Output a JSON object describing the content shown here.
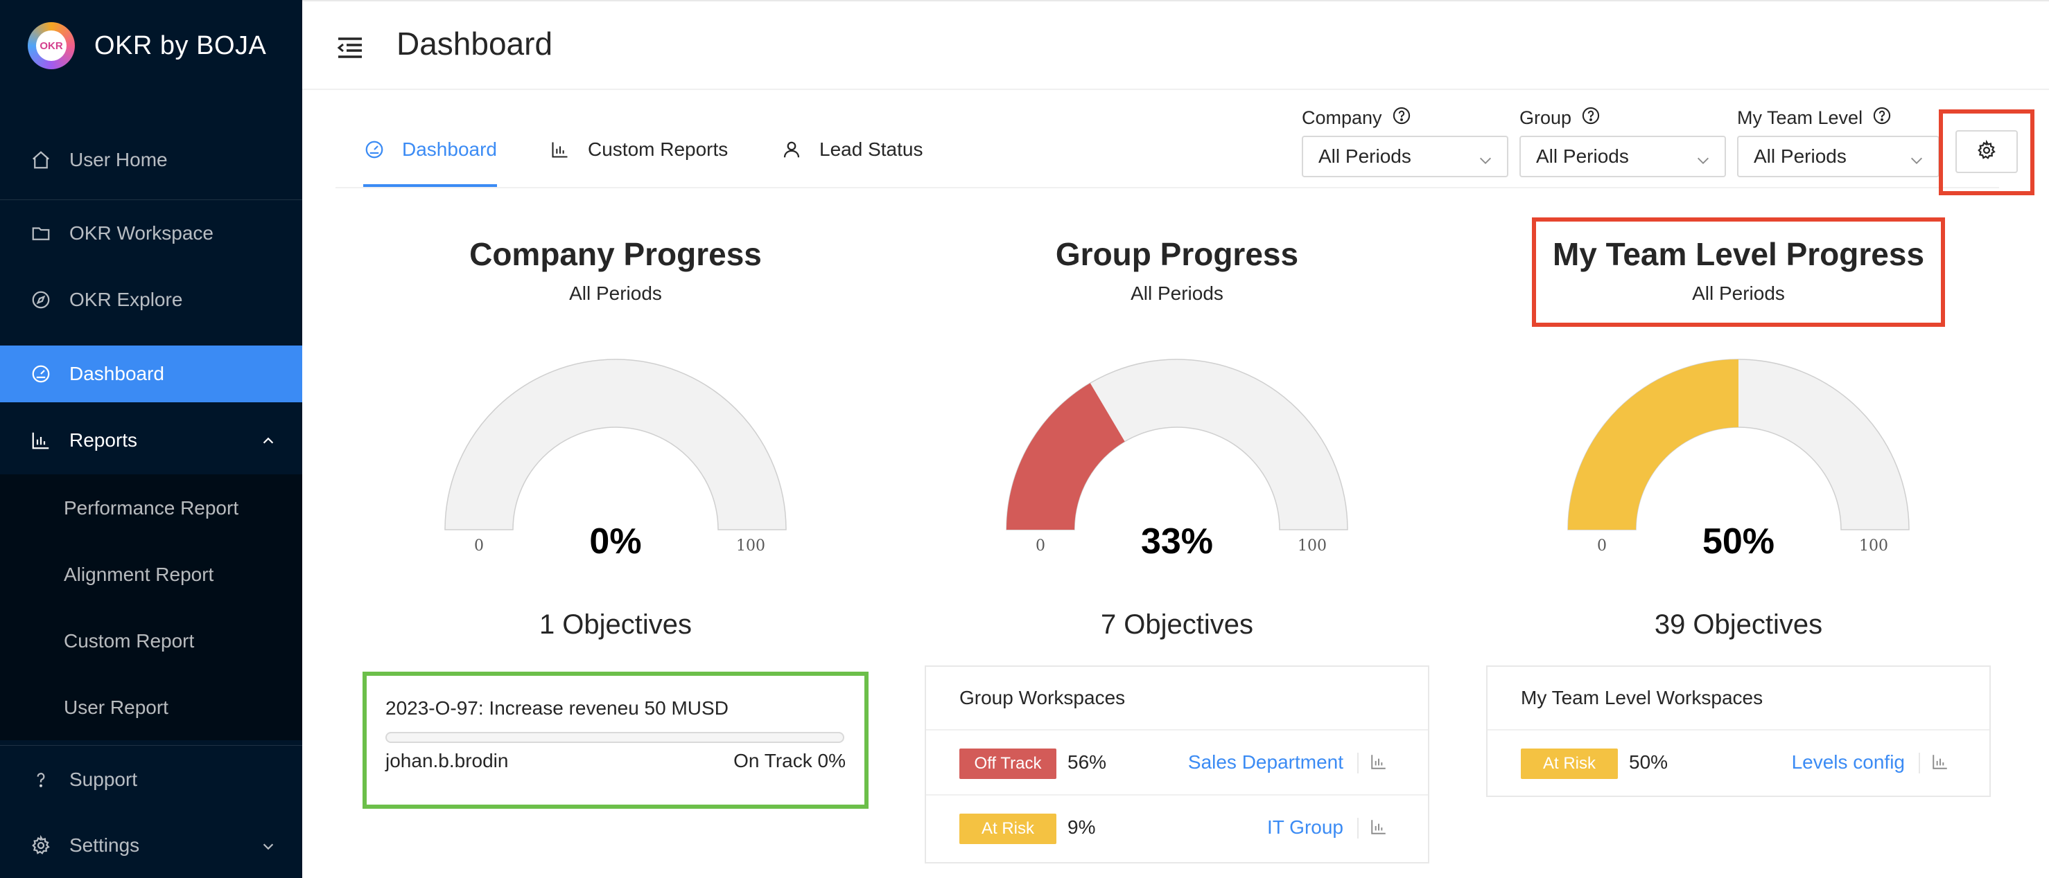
{
  "app": {
    "brand": "OKR by BOJA",
    "logo_text": "OKR"
  },
  "sidebar": {
    "items": [
      {
        "label": "User Home",
        "icon": "home-icon"
      },
      {
        "label": "OKR Workspace",
        "icon": "folder-icon"
      },
      {
        "label": "OKR Explore",
        "icon": "compass-icon"
      },
      {
        "label": "Dashboard",
        "icon": "dashboard-icon",
        "active": true
      },
      {
        "label": "Reports",
        "icon": "bar-chart-icon",
        "expanded": true
      },
      {
        "label": "Support",
        "icon": "question-icon"
      },
      {
        "label": "Settings",
        "icon": "gear-icon"
      }
    ],
    "report_subitems": [
      "Performance Report",
      "Alignment Report",
      "Custom Report",
      "User Report"
    ]
  },
  "header": {
    "title": "Dashboard"
  },
  "tabs": [
    {
      "label": "Dashboard",
      "icon": "dashboard-icon",
      "active": true
    },
    {
      "label": "Custom Reports",
      "icon": "bar-chart-icon"
    },
    {
      "label": "Lead Status",
      "icon": "user-icon"
    }
  ],
  "filters": [
    {
      "label": "Company",
      "value": "All Periods"
    },
    {
      "label": "Group",
      "value": "All Periods"
    },
    {
      "label": "My Team Level",
      "value": "All Periods"
    }
  ],
  "progress": [
    {
      "title": "Company Progress",
      "period": "All Periods",
      "value": 0,
      "display": "0%",
      "min_label": "0",
      "max_label": "100",
      "color": "#f0f0f0",
      "objectives": "1 Objectives"
    },
    {
      "title": "Group Progress",
      "period": "All Periods",
      "value": 33,
      "display": "33%",
      "min_label": "0",
      "max_label": "100",
      "color": "#d35b58",
      "objectives": "7 Objectives"
    },
    {
      "title": "My Team Level Progress",
      "period": "All Periods",
      "value": 50,
      "display": "50%",
      "min_label": "0",
      "max_label": "100",
      "color": "#f4c242",
      "objectives": "39 Objectives"
    }
  ],
  "objective_card": {
    "title": "2023-O-97: Increase reveneu 50 MUSD",
    "owner": "johan.b.brodin",
    "status": "On Track 0%",
    "progress": 0
  },
  "group_workspaces": {
    "title": "Group Workspaces",
    "rows": [
      {
        "badge": "Off Track",
        "badge_color": "#d35b58",
        "pct": "56%",
        "name": "Sales Department"
      },
      {
        "badge": "At Risk",
        "badge_color": "#f4c242",
        "pct": "9%",
        "name": "IT Group"
      }
    ]
  },
  "team_workspaces": {
    "title": "My Team Level Workspaces",
    "rows": [
      {
        "badge": "At Risk",
        "badge_color": "#f4c242",
        "pct": "50%",
        "name": "Levels config"
      }
    ]
  },
  "colors": {
    "sidebar_bg": "#001529",
    "accent": "#3b8bf4",
    "highlight_red": "#e6452e",
    "highlight_green": "#6cbf4a"
  }
}
